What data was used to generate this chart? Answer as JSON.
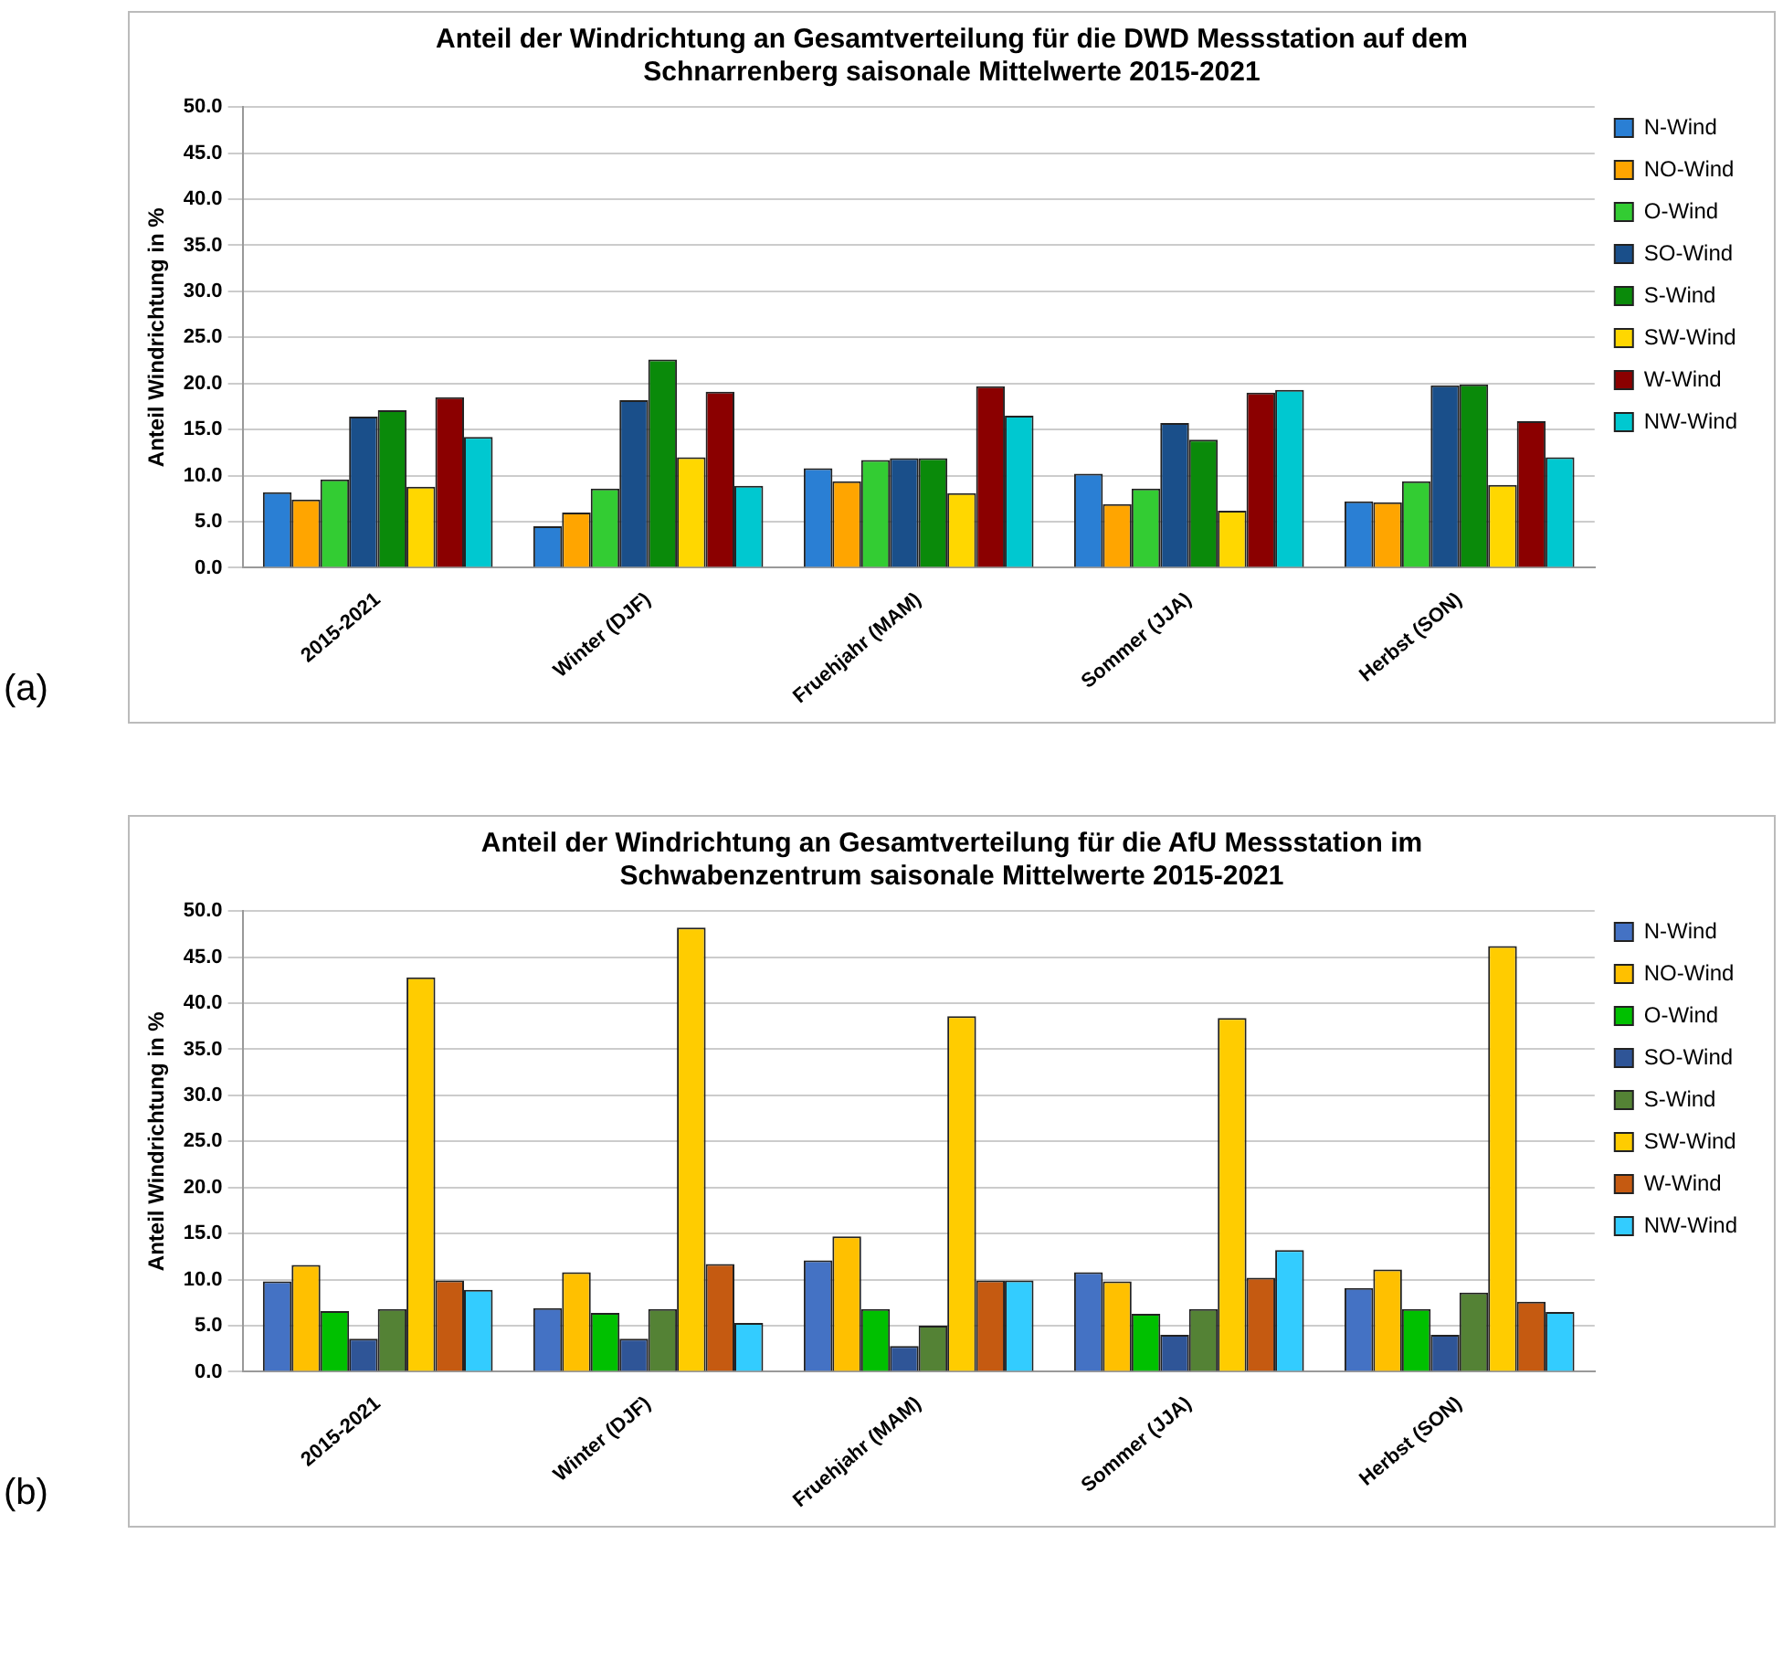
{
  "chart_data": [
    {
      "type": "bar",
      "title": "Anteil der Windrichtung an Gesamtverteilung für die DWD Messstation auf dem Schnarrenberg saisonale Mittelwerte 2015-2021",
      "ylabel": "Anteil Windrichtung in %",
      "annotations": [
        "(a)"
      ],
      "categories": [
        "2015-2021",
        "Winter (DJF)",
        "Fruehjahr (MAM)",
        "Sommer (JJA)",
        "Herbst (SON)"
      ],
      "series": [
        {
          "name": "N-Wind",
          "color": "#2a7fd4",
          "values": [
            8.2,
            4.5,
            10.8,
            10.2,
            7.2
          ]
        },
        {
          "name": "NO-Wind",
          "color": "#ffa500",
          "values": [
            7.4,
            6.0,
            9.4,
            6.9,
            7.1
          ]
        },
        {
          "name": "O-Wind",
          "color": "#33cc33",
          "values": [
            9.6,
            8.6,
            11.7,
            8.6,
            9.4
          ]
        },
        {
          "name": "SO-Wind",
          "color": "#1a4f8a",
          "values": [
            16.4,
            18.2,
            11.9,
            15.7,
            19.8
          ]
        },
        {
          "name": "S-Wind",
          "color": "#0a8a0a",
          "values": [
            17.1,
            22.6,
            11.9,
            13.9,
            19.9
          ]
        },
        {
          "name": "SW-Wind",
          "color": "#ffd700",
          "values": [
            8.8,
            12.0,
            8.1,
            6.2,
            9.0
          ]
        },
        {
          "name": "W-Wind",
          "color": "#8b0000",
          "values": [
            18.5,
            19.1,
            19.7,
            19.0,
            15.9
          ]
        },
        {
          "name": "NW-Wind",
          "color": "#00c8d0",
          "values": [
            14.2,
            8.9,
            16.5,
            19.3,
            12.0
          ]
        }
      ],
      "ylim": [
        0,
        50
      ],
      "yticks": [
        {
          "value": 0,
          "label": "0.0"
        },
        {
          "value": 5,
          "label": "5.0"
        },
        {
          "value": 10,
          "label": "10.0"
        },
        {
          "value": 15,
          "label": "15.0"
        },
        {
          "value": 20,
          "label": "20.0"
        },
        {
          "value": 25,
          "label": "25.0"
        },
        {
          "value": 30,
          "label": "30.0"
        },
        {
          "value": 35,
          "label": "35.0"
        },
        {
          "value": 40,
          "label": "40.0"
        },
        {
          "value": 45,
          "label": "45.0"
        },
        {
          "value": 50,
          "label": "50.0"
        }
      ],
      "grid": "y",
      "legend": "right"
    },
    {
      "type": "bar",
      "title": "Anteil der Windrichtung an Gesamtverteilung für die AfU Messstation im Schwabenzentrum saisonale Mittelwerte 2015-2021",
      "ylabel": "Anteil Windrichtung in %",
      "annotations": [
        "(b)"
      ],
      "categories": [
        "2015-2021",
        "Winter (DJF)",
        "Fruehjahr (MAM)",
        "Sommer (JJA)",
        "Herbst (SON)"
      ],
      "series": [
        {
          "name": "N-Wind",
          "color": "#4472c4",
          "values": [
            9.8,
            6.9,
            12.1,
            10.8,
            9.1
          ]
        },
        {
          "name": "NO-Wind",
          "color": "#ffc000",
          "values": [
            11.6,
            10.8,
            14.7,
            9.8,
            11.1
          ]
        },
        {
          "name": "O-Wind",
          "color": "#00c000",
          "values": [
            6.6,
            6.4,
            6.8,
            6.3,
            6.8
          ]
        },
        {
          "name": "SO-Wind",
          "color": "#2f5597",
          "values": [
            3.6,
            3.6,
            2.8,
            4.0,
            4.0
          ]
        },
        {
          "name": "S-Wind",
          "color": "#548235",
          "values": [
            6.8,
            6.8,
            5.0,
            6.8,
            8.6
          ]
        },
        {
          "name": "SW-Wind",
          "color": "#ffcc00",
          "values": [
            42.8,
            48.2,
            38.6,
            38.4,
            46.2
          ]
        },
        {
          "name": "W-Wind",
          "color": "#c55a11",
          "values": [
            9.9,
            11.7,
            9.9,
            10.2,
            7.6
          ]
        },
        {
          "name": "NW-Wind",
          "color": "#33ccff",
          "values": [
            8.9,
            5.3,
            9.9,
            13.2,
            6.5
          ]
        }
      ],
      "ylim": [
        0,
        50
      ],
      "yticks": [
        {
          "value": 0,
          "label": "0.0"
        },
        {
          "value": 5,
          "label": "5.0"
        },
        {
          "value": 10,
          "label": "10.0"
        },
        {
          "value": 15,
          "label": "15.0"
        },
        {
          "value": 20,
          "label": "20.0"
        },
        {
          "value": 25,
          "label": "25.0"
        },
        {
          "value": 30,
          "label": "30.0"
        },
        {
          "value": 35,
          "label": "35.0"
        },
        {
          "value": 40,
          "label": "40.0"
        },
        {
          "value": 45,
          "label": "45.0"
        },
        {
          "value": 50,
          "label": "50.0"
        }
      ],
      "grid": "y",
      "legend": "right"
    }
  ]
}
